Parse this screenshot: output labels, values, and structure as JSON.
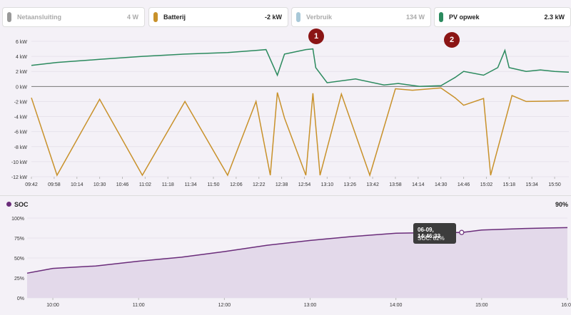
{
  "legend": [
    {
      "name": "Netaansluiting",
      "value": "4 W",
      "color": "#999999",
      "active": false
    },
    {
      "name": "Batterij",
      "value": "-2 kW",
      "color": "#c8912a",
      "active": true
    },
    {
      "name": "Verbruik",
      "value": "134 W",
      "color": "#a8c8d8",
      "active": false
    },
    {
      "name": "PV opwek",
      "value": "2.3 kW",
      "color": "#2b8a5e",
      "active": true
    }
  ],
  "markers": [
    "1",
    "2"
  ],
  "power_chart": {
    "y_ticks": [
      "6 kW",
      "4 kW",
      "2 kW",
      "0 kW",
      "-2 kW",
      "-4 kW",
      "-6 kW",
      "-8 kW",
      "-10 kW",
      "-12 kW"
    ],
    "x_ticks": [
      "09:42",
      "09:58",
      "10:14",
      "10:30",
      "10:46",
      "11:02",
      "11:18",
      "11:34",
      "11:50",
      "12:06",
      "12:22",
      "12:38",
      "12:54",
      "13:10",
      "13:26",
      "13:42",
      "13:58",
      "14:14",
      "14:30",
      "14:46",
      "15:02",
      "15:18",
      "15:34",
      "15:50"
    ]
  },
  "soc": {
    "label": "SOC",
    "current": "90%",
    "y_ticks": [
      "100%",
      "75%",
      "50%",
      "25%",
      "0%"
    ],
    "x_ticks": [
      "10:00",
      "11:00",
      "12:00",
      "13:00",
      "14:00",
      "15:00",
      "16:00"
    ],
    "tooltip_time": "06-09, 14:46:33",
    "tooltip_value": "SOC: 82%"
  },
  "chart_data": [
    {
      "type": "line",
      "ylim": [
        -12,
        6
      ],
      "x_range": [
        "09:42",
        "16:00"
      ],
      "series": [
        {
          "name": "PV opwek",
          "color": "#2b8a5e",
          "x": [
            "09:42",
            "10:00",
            "10:30",
            "11:00",
            "11:30",
            "12:00",
            "12:20",
            "12:27",
            "12:35",
            "12:40",
            "12:55",
            "13:00",
            "13:02",
            "13:10",
            "13:30",
            "13:50",
            "14:00",
            "14:15",
            "14:30",
            "14:40",
            "14:46",
            "15:00",
            "15:10",
            "15:15",
            "15:18",
            "15:30",
            "15:40",
            "15:50",
            "16:00"
          ],
          "values": [
            2.8,
            3.2,
            3.6,
            4.0,
            4.3,
            4.5,
            4.8,
            4.9,
            1.5,
            4.3,
            4.9,
            5.0,
            2.5,
            0.5,
            1.0,
            0.2,
            0.4,
            0.0,
            0.1,
            1.2,
            2.0,
            1.5,
            2.5,
            4.8,
            2.5,
            2.0,
            2.2,
            2.0,
            1.9
          ]
        },
        {
          "name": "Batterij",
          "color": "#c8912a",
          "x": [
            "09:42",
            "10:00",
            "10:30",
            "11:00",
            "11:30",
            "12:00",
            "12:20",
            "12:30",
            "12:35",
            "12:40",
            "12:55",
            "13:00",
            "13:05",
            "13:20",
            "13:40",
            "13:58",
            "14:10",
            "14:30",
            "14:40",
            "14:46",
            "15:00",
            "15:05",
            "15:20",
            "15:30",
            "16:00"
          ],
          "values": [
            -1.5,
            -11.8,
            -1.7,
            -11.8,
            -2.0,
            -11.8,
            -2.0,
            -11.8,
            -0.8,
            -4.2,
            -11.8,
            -0.9,
            -11.8,
            -1.0,
            -11.8,
            -0.3,
            -0.5,
            -0.2,
            -1.5,
            -2.5,
            -1.6,
            -11.8,
            -1.2,
            -2.0,
            -1.9
          ]
        }
      ]
    },
    {
      "type": "area",
      "ylim": [
        0,
        100
      ],
      "x_range": [
        "09:42",
        "16:00"
      ],
      "series": [
        {
          "name": "SOC",
          "color": "#6a2c7a",
          "x": [
            "09:42",
            "10:00",
            "10:30",
            "11:00",
            "11:30",
            "12:00",
            "12:30",
            "13:00",
            "13:30",
            "14:00",
            "14:30",
            "14:46",
            "15:00",
            "15:30",
            "16:00"
          ],
          "values": [
            31,
            37,
            40,
            46,
            51,
            58,
            66,
            72,
            77,
            81,
            82,
            82,
            85,
            87,
            88
          ]
        }
      ]
    }
  ]
}
